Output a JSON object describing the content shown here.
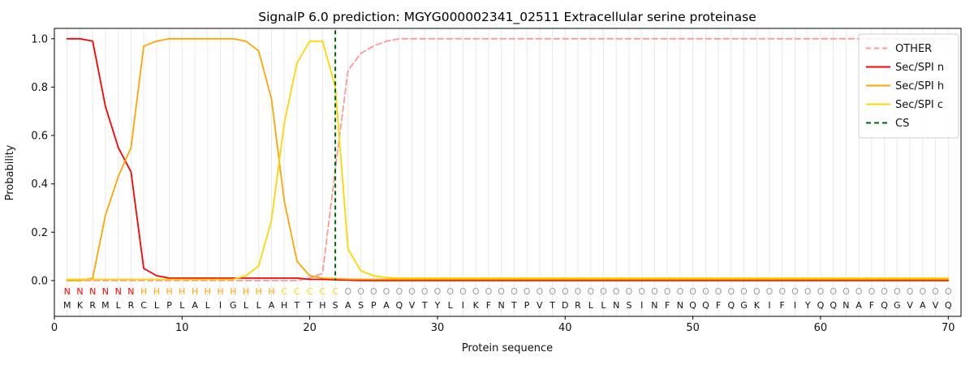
{
  "chart_data": {
    "type": "line",
    "title": "SignalP 6.0 prediction: MGYG000002341_02511 Extracellular serine proteinase",
    "xlabel": "Protein sequence",
    "ylabel": "Probability",
    "xlim": [
      0,
      71
    ],
    "ylim": [
      -0.148,
      1.043
    ],
    "xticks": [
      0,
      10,
      20,
      30,
      40,
      50,
      60,
      70
    ],
    "yticks": [
      0.0,
      0.2,
      0.4,
      0.6,
      0.8,
      1.0
    ],
    "grid": "light vertical gridline at every residue position, no horizontal gridlines",
    "grid_color": "#e8e8e8",
    "legend_position": "upper right",
    "n_positions": 70,
    "x_start": 1,
    "series": [
      {
        "name": "OTHER",
        "color": "#ff9896",
        "style": "dashed",
        "values": [
          0,
          0,
          0,
          0,
          0,
          0,
          0,
          0,
          0,
          0,
          0,
          0,
          0,
          0,
          0,
          0,
          0,
          0,
          0,
          0.01,
          0.03,
          0.46,
          0.87,
          0.94,
          0.97,
          0.99,
          1,
          1,
          1,
          1,
          1,
          1,
          1,
          1,
          1,
          1,
          1,
          1,
          1,
          1,
          1,
          1,
          1,
          1,
          1,
          1,
          1,
          1,
          1,
          1,
          1,
          1,
          1,
          1,
          1,
          1,
          1,
          1,
          1,
          1,
          1,
          1,
          1,
          1,
          1,
          1,
          1,
          1,
          1,
          1
        ]
      },
      {
        "name": "Sec/SPI n",
        "color": "#ff0000",
        "style": "solid",
        "values": [
          1,
          1,
          0.99,
          0.72,
          0.55,
          0.45,
          0.05,
          0.02,
          0.01,
          0.01,
          0.01,
          0.01,
          0.01,
          0.01,
          0.01,
          0.01,
          0.01,
          0.01,
          0.01,
          0.005,
          0.005,
          0.003,
          0.002,
          0,
          0,
          0,
          0,
          0,
          0,
          0,
          0,
          0,
          0,
          0,
          0,
          0,
          0,
          0,
          0,
          0,
          0,
          0,
          0,
          0,
          0,
          0,
          0,
          0,
          0,
          0,
          0,
          0,
          0,
          0,
          0,
          0,
          0,
          0,
          0,
          0,
          0,
          0,
          0,
          0,
          0,
          0,
          0,
          0,
          0,
          0
        ]
      },
      {
        "name": "Sec/SPI h",
        "color": "#ffa500",
        "style": "solid",
        "values": [
          0,
          0,
          0.01,
          0.27,
          0.43,
          0.55,
          0.97,
          0.99,
          1,
          1,
          1,
          1,
          1,
          1,
          0.99,
          0.95,
          0.75,
          0.33,
          0.08,
          0.02,
          0.01,
          0.008,
          0.006,
          0.005,
          0.005,
          0.005,
          0.005,
          0.005,
          0.005,
          0.005,
          0.005,
          0.005,
          0.005,
          0.005,
          0.005,
          0.005,
          0.005,
          0.005,
          0.005,
          0.005,
          0.005,
          0.005,
          0.005,
          0.005,
          0.005,
          0.005,
          0.005,
          0.005,
          0.005,
          0.005,
          0.005,
          0.005,
          0.005,
          0.005,
          0.005,
          0.005,
          0.005,
          0.005,
          0.005,
          0.005,
          0.005,
          0.005,
          0.005,
          0.005,
          0.005,
          0.005,
          0.005,
          0.005,
          0.005,
          0.005
        ]
      },
      {
        "name": "Sec/SPI c",
        "color": "#ffd700",
        "style": "solid",
        "values": [
          0.005,
          0.005,
          0.005,
          0.005,
          0.005,
          0.005,
          0.005,
          0.005,
          0.005,
          0.005,
          0.005,
          0.005,
          0.005,
          0.005,
          0.02,
          0.06,
          0.25,
          0.65,
          0.9,
          0.99,
          0.99,
          0.8,
          0.13,
          0.04,
          0.02,
          0.012,
          0.01,
          0.01,
          0.01,
          0.01,
          0.01,
          0.01,
          0.01,
          0.01,
          0.01,
          0.01,
          0.01,
          0.01,
          0.01,
          0.01,
          0.01,
          0.01,
          0.01,
          0.01,
          0.01,
          0.01,
          0.01,
          0.01,
          0.01,
          0.01,
          0.01,
          0.01,
          0.01,
          0.01,
          0.01,
          0.01,
          0.01,
          0.01,
          0.01,
          0.01,
          0.01,
          0.01,
          0.01,
          0.01,
          0.01,
          0.01,
          0.01,
          0.01,
          0.01,
          0.01
        ]
      }
    ],
    "cs_line": {
      "name": "CS",
      "x": 22,
      "color": "#006400",
      "style": "dashed"
    },
    "legend_labels": [
      "OTHER",
      "Sec/SPI n",
      "Sec/SPI h",
      "Sec/SPI c",
      "CS"
    ],
    "sequence": "MKRMLRCLPLALIGLLAHTTHSASPAQVTYLIKFNTPVTDRLLNSINFNQQFQGKIFIYQQNAFQGVAVQ",
    "region_labels": "NNNNNNHHHHHHHHHHHCCCCCOOOOOOOOOOOOOOOOOOOOOOOOOOOOOOOOOOOOOOOOOOOOOO",
    "region_colors": {
      "N": "#ff0000",
      "H": "#ffa500",
      "C": "#ffd700",
      "O": "#9e9e9e"
    },
    "axis_color": "#000000"
  }
}
